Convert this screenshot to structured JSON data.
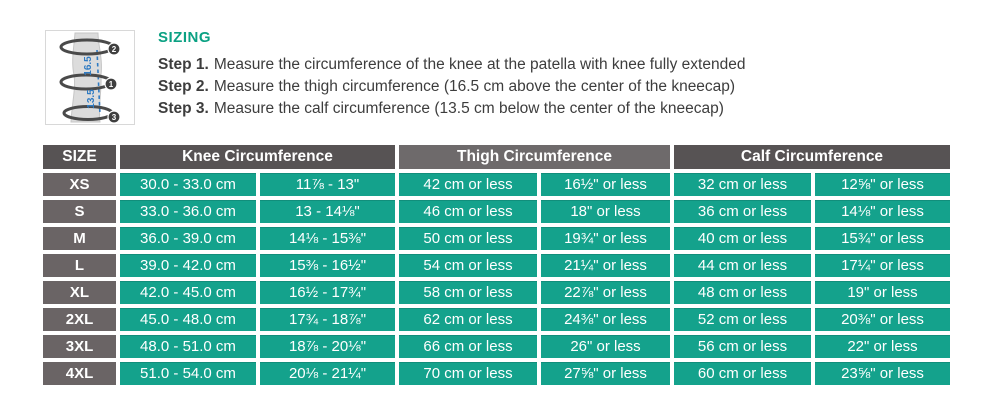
{
  "colors": {
    "accent_teal": "#14a28c",
    "header_dark_gray": "#575354",
    "header_light_gray": "#6e6a6b",
    "size_column_gray": "#6a6465",
    "title_teal": "#0ba183",
    "body_text": "#3d3d3d",
    "diagram_blue": "#2f7bc3"
  },
  "sizing": {
    "title": "SIZING",
    "steps": [
      {
        "label": "Step 1.",
        "text": "Measure the circumference of the knee at the patella with knee fully extended"
      },
      {
        "label": "Step 2.",
        "text": "Measure the thigh circumference (16.5 cm above the center of the kneecap)"
      },
      {
        "label": "Step 3.",
        "text": "Measure the calf circumference (13.5 cm below the center of the kneecap)"
      }
    ]
  },
  "diagram": {
    "thigh_band_number": "2",
    "knee_band_number": "1",
    "calf_band_number": "3",
    "distance_above_kneecap_cm": "16.5",
    "distance_below_kneecap_cm": "13.5"
  },
  "table": {
    "headers": {
      "size": "SIZE",
      "knee": "Knee Circumference",
      "thigh": "Thigh Circumference",
      "calf": "Calf Circumference"
    },
    "rows": [
      {
        "size": "XS",
        "cells": [
          "30.0 - 33.0 cm",
          "11⅞ - 13\"",
          "42 cm or less",
          "16½\" or less",
          "32 cm or less",
          "12⅝\" or less"
        ]
      },
      {
        "size": "S",
        "cells": [
          "33.0 - 36.0 cm",
          "13 - 14⅛\"",
          "46 cm or less",
          "18\" or less",
          "36 cm or less",
          "14⅛\" or less"
        ]
      },
      {
        "size": "M",
        "cells": [
          "36.0 - 39.0 cm",
          "14⅛ - 15⅜\"",
          "50 cm or less",
          "19¾\" or less",
          "40 cm or less",
          "15¾\" or less"
        ]
      },
      {
        "size": "L",
        "cells": [
          "39.0 - 42.0 cm",
          "15⅜ - 16½\"",
          "54 cm or less",
          "21¼\" or less",
          "44 cm or less",
          "17¼\" or less"
        ]
      },
      {
        "size": "XL",
        "cells": [
          "42.0 - 45.0 cm",
          "16½ - 17¾\"",
          "58 cm or less",
          "22⅞\" or less",
          "48 cm or less",
          "19\" or less"
        ]
      },
      {
        "size": "2XL",
        "cells": [
          "45.0 - 48.0 cm",
          "17¾ - 18⅞\"",
          "62 cm or less",
          "24⅜\" or less",
          "52 cm or less",
          "20⅜\" or less"
        ]
      },
      {
        "size": "3XL",
        "cells": [
          "48.0 - 51.0 cm",
          "18⅞ - 20⅛\"",
          "66 cm or less",
          "26\" or less",
          "56 cm or less",
          "22\" or less"
        ]
      },
      {
        "size": "4XL",
        "cells": [
          "51.0 - 54.0 cm",
          "20⅛ - 21¼\"",
          "70 cm or less",
          "27⅝\" or less",
          "60 cm or less",
          "23⅝\" or less"
        ]
      }
    ]
  }
}
